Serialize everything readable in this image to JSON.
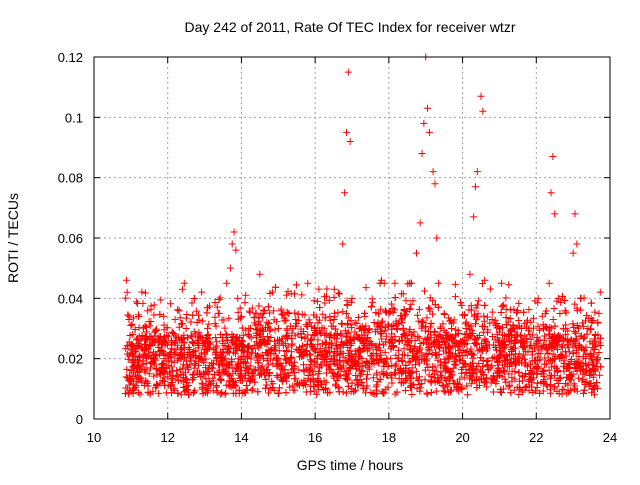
{
  "chart_data": {
    "type": "scatter",
    "title": "Day 242 of 2011, Rate Of TEC Index for receiver wtzr",
    "xlabel": "GPS time / hours",
    "ylabel": "ROTI / TECUs",
    "xlim": [
      10,
      24
    ],
    "ylim": [
      0,
      0.12
    ],
    "x_ticks": [
      "10",
      "12",
      "14",
      "16",
      "18",
      "20",
      "22",
      "24"
    ],
    "y_ticks": [
      "0",
      "0.02",
      "0.04",
      "0.06",
      "0.08",
      "0.1",
      "0.12"
    ],
    "x_tick_values": [
      10,
      12,
      14,
      16,
      18,
      20,
      22,
      24
    ],
    "y_tick_values": [
      0,
      0.02,
      0.04,
      0.06,
      0.08,
      0.1,
      0.12
    ],
    "grid": true,
    "marker": "+",
    "color": "#ff0000",
    "point_count": "~5000 (dense band; representative points listed)",
    "series": [
      {
        "points": [
          [
            10.88,
            0.046
          ],
          [
            10.9,
            0.042
          ],
          [
            10.95,
            0.033
          ],
          [
            11.0,
            0.031
          ],
          [
            11.05,
            0.028
          ],
          [
            11.1,
            0.018
          ],
          [
            11.2,
            0.025
          ],
          [
            11.3,
            0.012
          ],
          [
            11.4,
            0.021
          ],
          [
            11.5,
            0.015
          ],
          [
            11.6,
            0.019
          ],
          [
            11.7,
            0.011
          ],
          [
            11.8,
            0.016
          ],
          [
            11.9,
            0.02
          ],
          [
            12.0,
            0.014
          ],
          [
            12.1,
            0.026
          ],
          [
            12.2,
            0.033
          ],
          [
            12.3,
            0.02
          ],
          [
            12.4,
            0.043
          ],
          [
            12.45,
            0.045
          ],
          [
            12.5,
            0.03
          ],
          [
            12.6,
            0.018
          ],
          [
            12.7,
            0.025
          ],
          [
            12.8,
            0.032
          ],
          [
            12.9,
            0.014
          ],
          [
            13.0,
            0.022
          ],
          [
            13.1,
            0.028
          ],
          [
            13.2,
            0.017
          ],
          [
            13.3,
            0.027
          ],
          [
            13.4,
            0.035
          ],
          [
            13.5,
            0.025
          ],
          [
            13.6,
            0.045
          ],
          [
            13.7,
            0.05
          ],
          [
            13.75,
            0.058
          ],
          [
            13.8,
            0.062
          ],
          [
            13.85,
            0.056
          ],
          [
            13.9,
            0.04
          ],
          [
            14.0,
            0.023
          ],
          [
            14.2,
            0.03
          ],
          [
            14.4,
            0.035
          ],
          [
            14.5,
            0.048
          ],
          [
            14.6,
            0.02
          ],
          [
            14.8,
            0.027
          ],
          [
            15.0,
            0.02
          ],
          [
            15.2,
            0.025
          ],
          [
            15.4,
            0.03
          ],
          [
            15.6,
            0.022
          ],
          [
            15.8,
            0.045
          ],
          [
            16.0,
            0.03
          ],
          [
            16.2,
            0.025
          ],
          [
            16.4,
            0.018
          ],
          [
            16.6,
            0.028
          ],
          [
            16.75,
            0.058
          ],
          [
            16.8,
            0.075
          ],
          [
            16.85,
            0.095
          ],
          [
            16.9,
            0.115
          ],
          [
            16.95,
            0.092
          ],
          [
            17.0,
            0.04
          ],
          [
            17.2,
            0.03
          ],
          [
            17.4,
            0.025
          ],
          [
            17.6,
            0.032
          ],
          [
            17.8,
            0.046
          ],
          [
            18.0,
            0.035
          ],
          [
            18.2,
            0.03
          ],
          [
            18.4,
            0.028
          ],
          [
            18.6,
            0.038
          ],
          [
            18.75,
            0.055
          ],
          [
            18.85,
            0.065
          ],
          [
            18.9,
            0.088
          ],
          [
            18.95,
            0.098
          ],
          [
            19.0,
            0.12
          ],
          [
            19.05,
            0.103
          ],
          [
            19.1,
            0.095
          ],
          [
            19.2,
            0.082
          ],
          [
            19.25,
            0.078
          ],
          [
            19.3,
            0.06
          ],
          [
            19.35,
            0.045
          ],
          [
            19.5,
            0.035
          ],
          [
            19.7,
            0.03
          ],
          [
            19.9,
            0.025
          ],
          [
            20.1,
            0.03
          ],
          [
            20.2,
            0.048
          ],
          [
            20.3,
            0.067
          ],
          [
            20.35,
            0.077
          ],
          [
            20.4,
            0.082
          ],
          [
            20.5,
            0.107
          ],
          [
            20.55,
            0.102
          ],
          [
            20.6,
            0.046
          ],
          [
            20.8,
            0.033
          ],
          [
            21.0,
            0.026
          ],
          [
            21.2,
            0.021
          ],
          [
            21.4,
            0.025
          ],
          [
            21.6,
            0.03
          ],
          [
            21.8,
            0.03
          ],
          [
            22.0,
            0.025
          ],
          [
            22.2,
            0.03
          ],
          [
            22.35,
            0.045
          ],
          [
            22.4,
            0.075
          ],
          [
            22.45,
            0.087
          ],
          [
            22.5,
            0.068
          ],
          [
            22.6,
            0.04
          ],
          [
            22.8,
            0.03
          ],
          [
            23.0,
            0.055
          ],
          [
            23.05,
            0.068
          ],
          [
            23.1,
            0.058
          ],
          [
            23.2,
            0.04
          ],
          [
            23.4,
            0.03
          ],
          [
            23.6,
            0.028
          ],
          [
            23.7,
            0.035
          ]
        ]
      }
    ]
  }
}
